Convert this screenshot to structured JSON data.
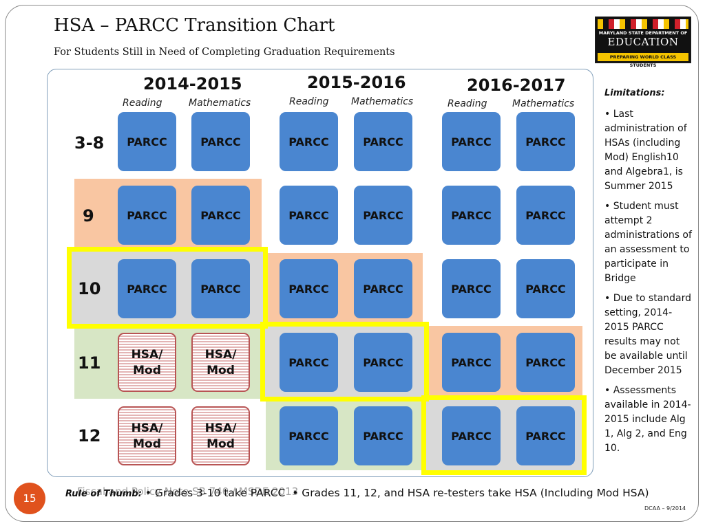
{
  "slide": {
    "title": "HSA – PARCC Transition Chart",
    "subtitle": "For Students Still in Need of Completing Graduation Requirements",
    "page_number": "15",
    "footer_code": "DCAA – 9/2014",
    "ghost_text": "Fiscal and Policy Note SB 740 / MSDE 2013"
  },
  "logo": {
    "line1": "MARYLAND STATE DEPARTMENT OF",
    "line2": "EDUCATION",
    "line3": "PREPARING WORLD CLASS STUDENTS"
  },
  "chart": {
    "years": [
      "2014-2015",
      "2015-2016",
      "2016-2017"
    ],
    "subjects": [
      "Reading",
      "Mathematics"
    ],
    "grades": [
      "3-8",
      "9",
      "10",
      "11",
      "12"
    ],
    "cells": [
      [
        "PARCC",
        "PARCC",
        "PARCC",
        "PARCC",
        "PARCC",
        "PARCC"
      ],
      [
        "PARCC",
        "PARCC",
        "PARCC",
        "PARCC",
        "PARCC",
        "PARCC"
      ],
      [
        "PARCC",
        "PARCC",
        "PARCC",
        "PARCC",
        "PARCC",
        "PARCC"
      ],
      [
        "HSA/\nMod",
        "HSA/\nMod",
        "PARCC",
        "PARCC",
        "PARCC",
        "PARCC"
      ],
      [
        "HSA/\nMod",
        "HSA/\nMod",
        "PARCC",
        "PARCC",
        "PARCC",
        "PARCC"
      ]
    ],
    "colors": {
      "parcc_box": "#4a86d0",
      "hsa_border": "#b85454",
      "grade9_band": "#f9c6a2",
      "grade10_band": "#d9d9d9",
      "grade11_band": "#d7e6c5",
      "highlight": "#ffff00"
    }
  },
  "limitations": {
    "heading": "Limitations:",
    "items": [
      "• Last administration of HSAs (including Mod) English10 and Algebra1, is Summer 2015",
      "• Student must attempt 2 administrations of an assessment to participate in Bridge",
      "• Due to standard setting, 2014-2015 PARCC results may not be available until December 2015",
      "• Assessments available in 2014-2015 include Alg 1, Alg 2, and Eng 10."
    ]
  },
  "rule_of_thumb": {
    "label": "Rule of Thumb:",
    "text1": "• Grades 3-10 take PARCC",
    "text2": "• Grades 11, 12, and HSA re-testers take HSA (Including Mod HSA)"
  }
}
